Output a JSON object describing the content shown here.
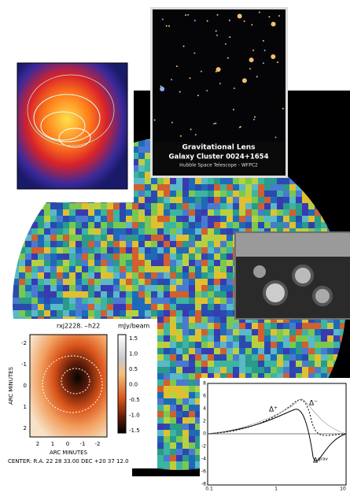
{
  "hubble": {
    "title": "Gravitational Lens",
    "subtitle": "Galaxy Cluster 0024+1654",
    "credit": "Hubble Space Telescope - WFPC2"
  },
  "contour_plot": {
    "title": "rxj2228. –",
    "field": "h22",
    "unit": "mJy/beam",
    "colorbar_ticks": [
      "1.5",
      "1.0",
      "0.5",
      "0.0",
      "-0.5",
      "-1.0",
      "-1.5"
    ],
    "y_ticks": [
      "-2",
      "-1",
      "0",
      "1",
      "2"
    ],
    "x_ticks": [
      "2",
      "1",
      "0",
      "-1",
      "-2"
    ],
    "x_label": "ARC MINUTES",
    "y_label": "ARC MINUTES",
    "center": "CENTER: R.A. 22 28 33.00  DEC +20 37 12.0"
  },
  "line_plot": {
    "y_ticks": [
      "8",
      "6",
      "4",
      "2",
      "0",
      "-2",
      "-4",
      "-6",
      "-8"
    ],
    "x_ticks": [
      "0.1",
      "1",
      "10"
    ],
    "labels": [
      "Δ⁺",
      "Δ⁻",
      "Δᵍʳᵃᵛ"
    ]
  }
}
